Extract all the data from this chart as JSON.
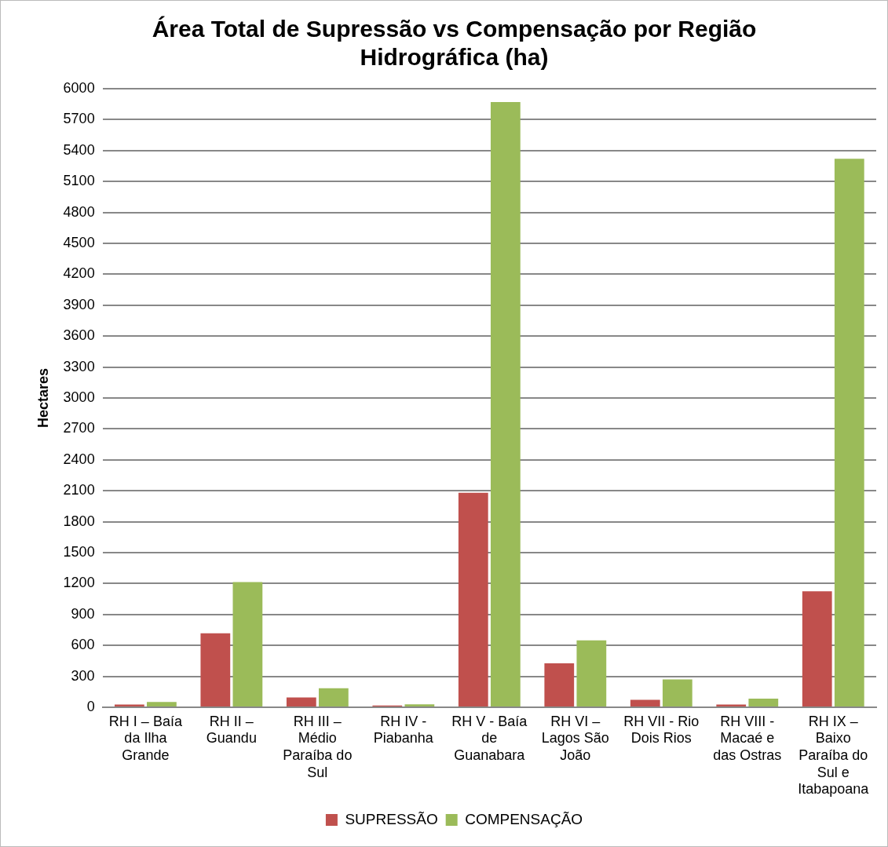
{
  "chart_data": {
    "type": "bar",
    "title": [
      "Área Total de Supressão vs Compensação por Região",
      "Hidrográfica (ha)"
    ],
    "ylabel": "Hectares",
    "categories": [
      [
        "RH I – Baía",
        "da Ilha",
        "Grande"
      ],
      [
        "RH II –",
        "Guandu"
      ],
      [
        "RH III –",
        "Médio",
        "Paraíba do",
        "Sul"
      ],
      [
        "RH IV -",
        "Piabanha"
      ],
      [
        "RH V - Baía",
        "de",
        "Guanabara"
      ],
      [
        "RH VI –",
        "Lagos São",
        "João"
      ],
      [
        "RH VII - Rio",
        "Dois Rios"
      ],
      [
        "RH VIII -",
        "Macaé e",
        "das Ostras"
      ],
      [
        "RH IX –",
        "Baixo",
        "Paraíba do",
        "Sul e",
        "Itabapoana"
      ]
    ],
    "series": [
      {
        "name": "SUPRESSÃO",
        "color": "#c0504d",
        "values": [
          26,
          718,
          95,
          17,
          2080,
          427,
          72,
          26,
          1125
        ]
      },
      {
        "name": "COMPENSAÇÃO",
        "color": "#9bbb59",
        "values": [
          52,
          1214,
          185,
          29,
          5870,
          649,
          271,
          84,
          5320
        ]
      }
    ],
    "ylim": [
      0,
      6000
    ],
    "yticks": [
      0,
      300,
      600,
      900,
      1200,
      1500,
      1800,
      2100,
      2400,
      2700,
      3000,
      3300,
      3600,
      3900,
      4200,
      4500,
      4800,
      5100,
      5400,
      5700,
      6000
    ],
    "grid": "y",
    "legend": "bottom"
  }
}
